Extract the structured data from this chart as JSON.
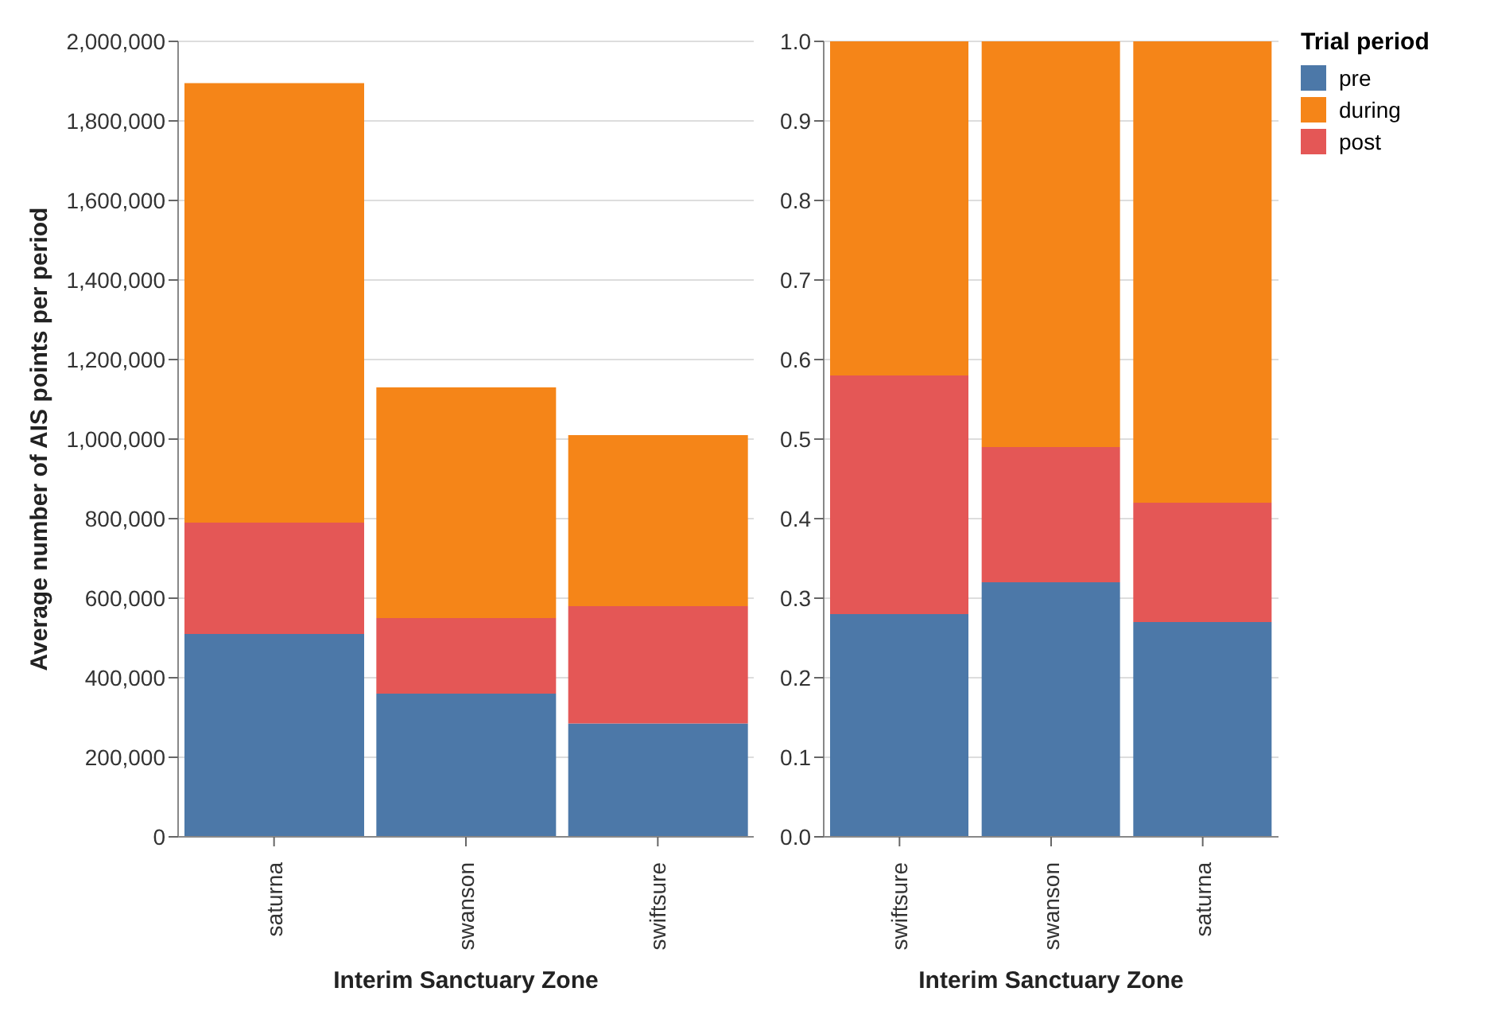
{
  "chart_data": [
    {
      "type": "bar",
      "stacked": true,
      "xlabel": "Interim Sanctuary Zone",
      "ylabel": "Average number of AIS points per period",
      "categories": [
        "saturna",
        "swanson",
        "swiftsure"
      ],
      "series": [
        {
          "color": "#4c78a8",
          "values": [
            510000,
            360000,
            285000
          ]
        },
        {
          "color": "#f58518",
          "values": [
            1105000,
            580000,
            430000
          ]
        },
        {
          "color": "#e45756",
          "values": [
            280000,
            190000,
            295000
          ]
        }
      ],
      "ylim": [
        0,
        2000000
      ],
      "yticks": [
        {
          "value": 0,
          "label": "0"
        },
        {
          "value": 200000,
          "label": "200,000"
        },
        {
          "value": 400000,
          "label": "400,000"
        },
        {
          "value": 600000,
          "label": "600,000"
        },
        {
          "value": 800000,
          "label": "800,000"
        },
        {
          "value": 1000000,
          "label": "1,000,000"
        },
        {
          "value": 1200000,
          "label": "1,200,000"
        },
        {
          "value": 1400000,
          "label": "1,400,000"
        },
        {
          "value": 1600000,
          "label": "1,600,000"
        },
        {
          "value": 1800000,
          "label": "1,800,000"
        },
        {
          "value": 2000000,
          "label": "2,000,000"
        }
      ],
      "grid": "y"
    },
    {
      "type": "bar",
      "stacked": true,
      "xlabel": "Interim Sanctuary Zone",
      "legend_title": "Trial period",
      "categories": [
        "swiftsure",
        "swanson",
        "saturna"
      ],
      "series": [
        {
          "name": "pre",
          "color": "#4c78a8",
          "values": [
            0.28,
            0.32,
            0.27
          ]
        },
        {
          "name": "during",
          "color": "#f58518",
          "values": [
            0.42,
            0.51,
            0.58
          ]
        },
        {
          "name": "post",
          "color": "#e45756",
          "values": [
            0.3,
            0.17,
            0.15
          ]
        }
      ],
      "ylim": [
        0,
        1
      ],
      "yticks": [
        {
          "value": 0,
          "label": "0.0"
        },
        {
          "value": 0.1,
          "label": "0.1"
        },
        {
          "value": 0.2,
          "label": "0.2"
        },
        {
          "value": 0.3,
          "label": "0.3"
        },
        {
          "value": 0.4,
          "label": "0.4"
        },
        {
          "value": 0.5,
          "label": "0.5"
        },
        {
          "value": 0.6,
          "label": "0.6"
        },
        {
          "value": 0.7,
          "label": "0.7"
        },
        {
          "value": 0.8,
          "label": "0.8"
        },
        {
          "value": 0.9,
          "label": "0.9"
        },
        {
          "value": 1,
          "label": "1.0"
        }
      ],
      "grid": "y",
      "legend": "right"
    }
  ]
}
